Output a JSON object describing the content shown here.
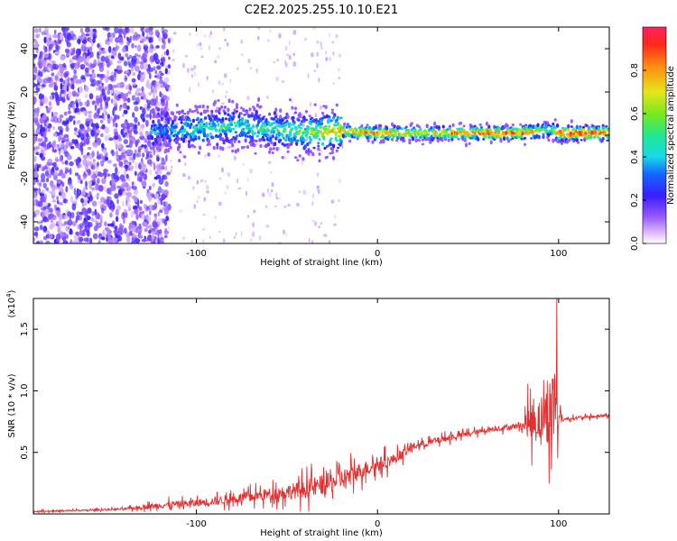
{
  "chart_data": [
    {
      "type": "heatmap",
      "title": "C2E2.2025.255.10.10.E21",
      "xlabel": "Height of straight line (km)",
      "ylabel": "Frequency (Hz)",
      "xlim": [
        -190,
        128
      ],
      "ylim": [
        -50,
        50
      ],
      "xticks": [
        "-100",
        "0",
        "100"
      ],
      "yticks": [
        "40",
        "20",
        "0",
        "-20",
        "-40"
      ],
      "colorbar": {
        "label": "Normalized spectral amplitude",
        "range": [
          0.0,
          1.0
        ],
        "ticks": [
          "0.0",
          "0.2",
          "0.4",
          "0.6",
          "0.8"
        ]
      },
      "ridge": {
        "description_points_x": [
          -125,
          -100,
          -80,
          -60,
          -40,
          -20,
          0,
          20,
          40,
          60,
          80,
          95,
          100,
          128
        ],
        "center_freq_hz": [
          2,
          3,
          4,
          3,
          1,
          2,
          1,
          1,
          1,
          1,
          1,
          3,
          1,
          1
        ],
        "peak_amplitude": [
          0.35,
          0.45,
          0.5,
          0.5,
          0.55,
          0.8,
          0.9,
          0.7,
          0.85,
          0.9,
          0.9,
          0.5,
          0.95,
          0.95
        ]
      }
    },
    {
      "type": "line",
      "xlabel": "Height of straight line (km)",
      "ylabel": "SNR (10 * v/v)",
      "multiplier": "(x10",
      "multiplier_exp": "4",
      "multiplier_close": ")",
      "xlim": [
        -190,
        128
      ],
      "ylim": [
        0,
        1.75
      ],
      "xticks": [
        "-100",
        "0",
        "100"
      ],
      "yticks": [
        "0.5",
        "1.0",
        "1.5"
      ],
      "series": [
        {
          "name": "SNR",
          "color": "#e03030",
          "x": [
            -190,
            -160,
            -140,
            -120,
            -100,
            -80,
            -60,
            -40,
            -20,
            -5,
            0,
            10,
            20,
            40,
            60,
            80,
            83,
            88,
            93,
            96,
            98,
            100,
            103,
            110,
            128
          ],
          "y": [
            0.02,
            0.03,
            0.04,
            0.07,
            0.09,
            0.12,
            0.16,
            0.2,
            0.28,
            0.38,
            0.4,
            0.45,
            0.55,
            0.62,
            0.68,
            0.72,
            0.74,
            0.76,
            0.8,
            0.85,
            0.9,
            0.78,
            0.77,
            0.78,
            0.8
          ],
          "noise": [
            0.01,
            0.01,
            0.015,
            0.04,
            0.05,
            0.06,
            0.08,
            0.12,
            0.14,
            0.1,
            0.1,
            0.07,
            0.05,
            0.04,
            0.03,
            0.04,
            0.2,
            0.3,
            0.35,
            0.5,
            0.6,
            0.1,
            0.02,
            0.02,
            0.02
          ]
        }
      ]
    }
  ]
}
